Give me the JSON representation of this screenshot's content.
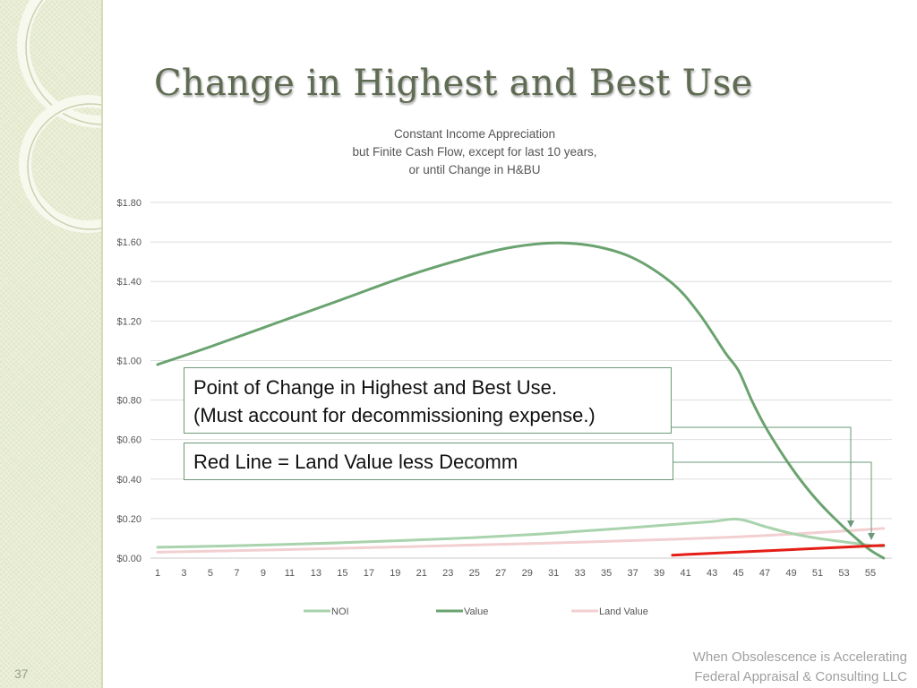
{
  "slide": {
    "title": "Change in Highest and Best Use",
    "number": "37",
    "footer": [
      "When Obsolescence is Accelerating",
      "Federal Appraisal & Consulting LLC"
    ]
  },
  "callouts": {
    "hbu_change": [
      "Point of Change in Highest and Best Use.",
      "(Must account for decommissioning expense.)"
    ],
    "red_line": "Red Line = Land Value less Decomm"
  },
  "colors": {
    "noi": "#a9d3ad",
    "value": "#6aa36f",
    "land_value": "#f2cfd1",
    "red_line": "#e41e16",
    "gridline": "#dedede",
    "callout_border": "#6b9a78"
  },
  "chart_data": {
    "type": "line",
    "title_lines": [
      "Constant Income Appreciation",
      "but Finite Cash Flow, except for last 10 years,",
      "or until Change in H&BU"
    ],
    "x_tick_labels": [
      "1",
      "3",
      "5",
      "7",
      "9",
      "11",
      "13",
      "15",
      "17",
      "19",
      "21",
      "23",
      "25",
      "27",
      "29",
      "31",
      "33",
      "35",
      "37",
      "39",
      "41",
      "43",
      "45",
      "47",
      "49",
      "51",
      "53",
      "55"
    ],
    "y_tick_labels": [
      "$0.00",
      "$0.20",
      "$0.40",
      "$0.60",
      "$0.80",
      "$1.00",
      "$1.20",
      "$1.40",
      "$1.60",
      "$1.80"
    ],
    "ylim": [
      0,
      1.8
    ],
    "xlim": [
      1,
      56
    ],
    "grid": true,
    "legend_position": "bottom",
    "series": [
      {
        "name": "NOI",
        "color": "#a9d3ad",
        "points": [
          [
            1,
            0.055
          ],
          [
            5,
            0.06
          ],
          [
            10,
            0.068
          ],
          [
            15,
            0.078
          ],
          [
            20,
            0.09
          ],
          [
            25,
            0.104
          ],
          [
            30,
            0.122
          ],
          [
            35,
            0.145
          ],
          [
            40,
            0.17
          ],
          [
            43,
            0.185
          ],
          [
            45,
            0.197
          ],
          [
            47,
            0.16
          ],
          [
            49,
            0.125
          ],
          [
            51,
            0.1
          ],
          [
            53,
            0.082
          ],
          [
            55,
            0.065
          ],
          [
            56,
            0.06
          ]
        ]
      },
      {
        "name": "Value",
        "color": "#6aa36f",
        "points": [
          [
            1,
            0.98
          ],
          [
            5,
            1.07
          ],
          [
            10,
            1.19
          ],
          [
            15,
            1.31
          ],
          [
            20,
            1.43
          ],
          [
            25,
            1.53
          ],
          [
            28,
            1.575
          ],
          [
            31,
            1.595
          ],
          [
            34,
            1.58
          ],
          [
            37,
            1.52
          ],
          [
            40,
            1.39
          ],
          [
            42,
            1.24
          ],
          [
            44,
            1.04
          ],
          [
            45,
            0.95
          ],
          [
            46,
            0.8
          ],
          [
            47,
            0.67
          ],
          [
            48,
            0.56
          ],
          [
            49,
            0.46
          ],
          [
            50,
            0.37
          ],
          [
            51,
            0.29
          ],
          [
            52,
            0.22
          ],
          [
            53,
            0.155
          ],
          [
            54,
            0.095
          ],
          [
            55,
            0.04
          ],
          [
            56,
            0.0
          ]
        ]
      },
      {
        "name": "Land Value",
        "color": "#f2cfd1",
        "points": [
          [
            1,
            0.03
          ],
          [
            10,
            0.042
          ],
          [
            20,
            0.058
          ],
          [
            30,
            0.075
          ],
          [
            40,
            0.095
          ],
          [
            45,
            0.108
          ],
          [
            50,
            0.125
          ],
          [
            56,
            0.15
          ]
        ]
      },
      {
        "name": "",
        "color": "#e41e16",
        "points": [
          [
            40,
            0.015
          ],
          [
            56,
            0.065
          ]
        ]
      }
    ]
  }
}
